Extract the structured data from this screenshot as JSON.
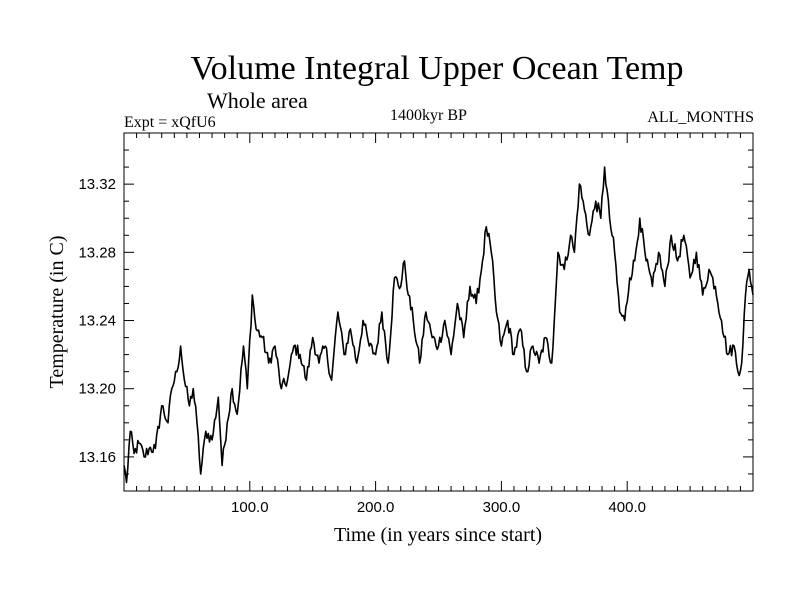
{
  "header": {
    "title": "Volume Integral Upper Ocean Temp",
    "subtitle": "Whole area",
    "experiment": "Expt = xQfU6",
    "period": "1400kyr BP",
    "months": "ALL_MONTHS"
  },
  "chart_data": {
    "type": "line",
    "title": "Volume Integral Upper Ocean Temp",
    "subtitle": "Whole area",
    "xlabel": "Time (in years since start)",
    "ylabel": "Temperature (in C)",
    "xlim": [
      0,
      500
    ],
    "ylim": [
      13.14,
      13.35
    ],
    "xticks": [
      100,
      200,
      300,
      400
    ],
    "xtick_labels": [
      "100.0",
      "200.0",
      "300.0",
      "400.0"
    ],
    "yticks": [
      13.16,
      13.2,
      13.24,
      13.28,
      13.32
    ],
    "ytick_labels": [
      "13.16",
      "13.20",
      "13.24",
      "13.28",
      "13.32"
    ],
    "series": [
      {
        "name": "Volume integral upper ocean temperature",
        "x": [
          0,
          2,
          5,
          8,
          12,
          16,
          20,
          25,
          30,
          35,
          38,
          42,
          45,
          48,
          52,
          55,
          58,
          61,
          65,
          70,
          75,
          78,
          82,
          86,
          90,
          95,
          98,
          102,
          105,
          110,
          115,
          120,
          125,
          130,
          135,
          140,
          145,
          150,
          155,
          160,
          165,
          170,
          175,
          180,
          185,
          190,
          195,
          200,
          205,
          210,
          215,
          220,
          223,
          226,
          230,
          235,
          240,
          245,
          250,
          255,
          260,
          265,
          270,
          275,
          280,
          285,
          288,
          292,
          296,
          300,
          305,
          310,
          315,
          320,
          325,
          330,
          335,
          340,
          345,
          350,
          355,
          358,
          362,
          366,
          370,
          375,
          379,
          382,
          386,
          390,
          394,
          398,
          402,
          406,
          410,
          415,
          420,
          425,
          430,
          435,
          440,
          445,
          450,
          455,
          460,
          465,
          470,
          475,
          480,
          485,
          488,
          491,
          494,
          497,
          500
        ],
        "y": [
          13.155,
          13.145,
          13.175,
          13.162,
          13.168,
          13.16,
          13.165,
          13.165,
          13.19,
          13.18,
          13.2,
          13.21,
          13.225,
          13.205,
          13.19,
          13.2,
          13.18,
          13.15,
          13.175,
          13.17,
          13.195,
          13.155,
          13.18,
          13.2,
          13.185,
          13.225,
          13.2,
          13.255,
          13.235,
          13.23,
          13.215,
          13.225,
          13.2,
          13.205,
          13.225,
          13.22,
          13.205,
          13.23,
          13.215,
          13.225,
          13.205,
          13.245,
          13.22,
          13.235,
          13.215,
          13.24,
          13.225,
          13.22,
          13.245,
          13.215,
          13.265,
          13.26,
          13.275,
          13.255,
          13.24,
          13.215,
          13.245,
          13.23,
          13.225,
          13.24,
          13.22,
          13.25,
          13.23,
          13.26,
          13.25,
          13.275,
          13.295,
          13.28,
          13.245,
          13.225,
          13.24,
          13.22,
          13.235,
          13.21,
          13.225,
          13.215,
          13.23,
          13.215,
          13.28,
          13.27,
          13.29,
          13.28,
          13.32,
          13.305,
          13.29,
          13.31,
          13.3,
          13.33,
          13.3,
          13.28,
          13.245,
          13.24,
          13.265,
          13.275,
          13.3,
          13.275,
          13.26,
          13.28,
          13.26,
          13.29,
          13.275,
          13.29,
          13.265,
          13.28,
          13.255,
          13.27,
          13.26,
          13.24,
          13.22,
          13.225,
          13.21,
          13.215,
          13.255,
          13.27,
          13.255
        ]
      }
    ]
  }
}
